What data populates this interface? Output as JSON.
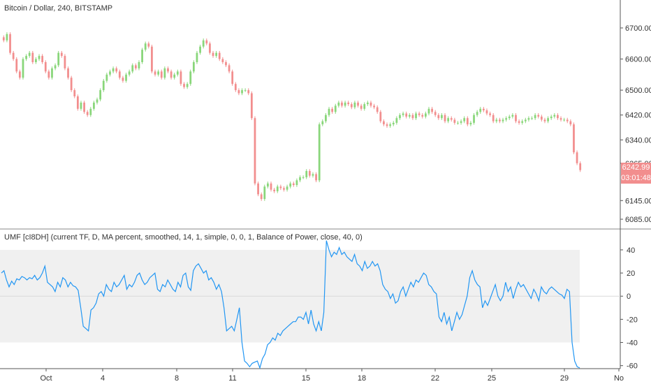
{
  "colors": {
    "up": "#89d67a",
    "down": "#f28e8e",
    "umf_line": "#2196f3",
    "band": "#f0f0f0",
    "zero_line": "#d9d9d9",
    "price_tag": "#f28e8e",
    "axis": "#555555"
  },
  "price_tags": {
    "last_price": "6242.99",
    "countdown": "03:01:48"
  },
  "chart_data": [
    {
      "type": "candlestick",
      "title": "Bitcoin / Dollar, 240, BITSTAMP",
      "y_ticks": [
        "6700.00",
        "6600.00",
        "6500.00",
        "6420.00",
        "6340.00",
        "6265.00",
        "6145.00",
        "6085.00"
      ],
      "x_ticks": [
        "Oct",
        "4",
        "8",
        "11",
        "15",
        "18",
        "22",
        "25",
        "29",
        "No"
      ],
      "closes": [
        6660,
        6680,
        6620,
        6600,
        6560,
        6540,
        6600,
        6610,
        6620,
        6590,
        6600,
        6610,
        6590,
        6560,
        6540,
        6570,
        6580,
        6620,
        6610,
        6570,
        6540,
        6500,
        6480,
        6440,
        6460,
        6430,
        6420,
        6440,
        6460,
        6470,
        6500,
        6530,
        6550,
        6560,
        6570,
        6560,
        6540,
        6530,
        6550,
        6560,
        6580,
        6570,
        6590,
        6630,
        6650,
        6640,
        6560,
        6550,
        6560,
        6540,
        6570,
        6560,
        6540,
        6550,
        6560,
        6520,
        6510,
        6520,
        6560,
        6590,
        6620,
        6640,
        6660,
        6650,
        6620,
        6610,
        6620,
        6600,
        6590,
        6580,
        6560,
        6520,
        6500,
        6490,
        6500,
        6500,
        6490,
        6410,
        6200,
        6165,
        6150,
        6190,
        6200,
        6180,
        6175,
        6190,
        6185,
        6180,
        6190,
        6200,
        6195,
        6210,
        6220,
        6220,
        6240,
        6225,
        6230,
        6210,
        6390,
        6400,
        6420,
        6440,
        6430,
        6450,
        6460,
        6450,
        6460,
        6455,
        6445,
        6460,
        6450,
        6440,
        6455,
        6460,
        6450,
        6445,
        6430,
        6400,
        6390,
        6385,
        6390,
        6395,
        6410,
        6420,
        6425,
        6415,
        6420,
        6410,
        6425,
        6420,
        6415,
        6425,
        6440,
        6430,
        6420,
        6410,
        6420,
        6400,
        6410,
        6405,
        6395,
        6395,
        6400,
        6410,
        6390,
        6395,
        6420,
        6430,
        6440,
        6435,
        6425,
        6420,
        6400,
        6405,
        6400,
        6405,
        6410,
        6415,
        6420,
        6400,
        6395,
        6400,
        6405,
        6410,
        6410,
        6420,
        6415,
        6405,
        6400,
        6410,
        6415,
        6420,
        6410,
        6405,
        6405,
        6400,
        6390,
        6300,
        6265,
        6242.99
      ]
    },
    {
      "type": "line",
      "title": "UMF [cI8DH] (current TF, D, MA percent, smoothed, 14, 1, simple, 0, 0, 1, Balance of Power, close, 40, 0)",
      "y_ticks": [
        40,
        20,
        0,
        -20,
        -40,
        -60
      ],
      "band": [
        -40,
        40
      ],
      "ylim": [
        -62,
        52
      ],
      "series": [
        {
          "values": [
            20,
            22,
            14,
            8,
            13,
            10,
            15,
            14,
            17,
            16,
            14,
            16,
            15,
            18,
            14,
            16,
            20,
            26,
            12,
            10,
            8,
            4,
            12,
            8,
            16,
            14,
            8,
            12,
            9,
            8,
            5,
            -10,
            -26,
            -28,
            -30,
            -12,
            -10,
            -6,
            2,
            4,
            0,
            10,
            6,
            4,
            12,
            8,
            10,
            14,
            18,
            6,
            10,
            8,
            12,
            18,
            20,
            14,
            10,
            12,
            16,
            18,
            20,
            6,
            4,
            10,
            8,
            14,
            10,
            6,
            4,
            12,
            8,
            18,
            20,
            8,
            5,
            22,
            26,
            28,
            24,
            20,
            22,
            14,
            16,
            12,
            6,
            10,
            4,
            -10,
            -30,
            -28,
            -26,
            -30,
            -20,
            -10,
            -40,
            -56,
            -58,
            -61,
            -58,
            -57,
            -56,
            -62,
            -54,
            -50,
            -42,
            -40,
            -36,
            -38,
            -32,
            -34,
            -30,
            -28,
            -26,
            -24,
            -22,
            -22,
            -18,
            -18,
            -20,
            -14,
            -24,
            -12,
            -24,
            -30,
            -22,
            -30,
            -14,
            48,
            40,
            34,
            38,
            36,
            42,
            36,
            38,
            34,
            32,
            30,
            36,
            28,
            26,
            22,
            30,
            24,
            26,
            30,
            26,
            28,
            22,
            10,
            6,
            4,
            -2,
            2,
            -6,
            -4,
            4,
            8,
            0,
            6,
            12,
            8,
            14,
            12,
            16,
            20,
            18,
            10,
            8,
            4,
            2,
            -18,
            -22,
            -14,
            -24,
            -18,
            -30,
            -22,
            -14,
            -20,
            -16,
            -8,
            0,
            16,
            22,
            14,
            10,
            8,
            -10,
            -4,
            -8,
            -2,
            4,
            10,
            0,
            -4,
            0,
            12,
            4,
            8,
            -2,
            6,
            12,
            8,
            10,
            6,
            2,
            -2,
            6,
            2,
            -4,
            8,
            4,
            2,
            6,
            8,
            6,
            4,
            2,
            1,
            -2,
            6,
            4,
            -40,
            -56,
            -61,
            -62
          ]
        }
      ]
    }
  ]
}
